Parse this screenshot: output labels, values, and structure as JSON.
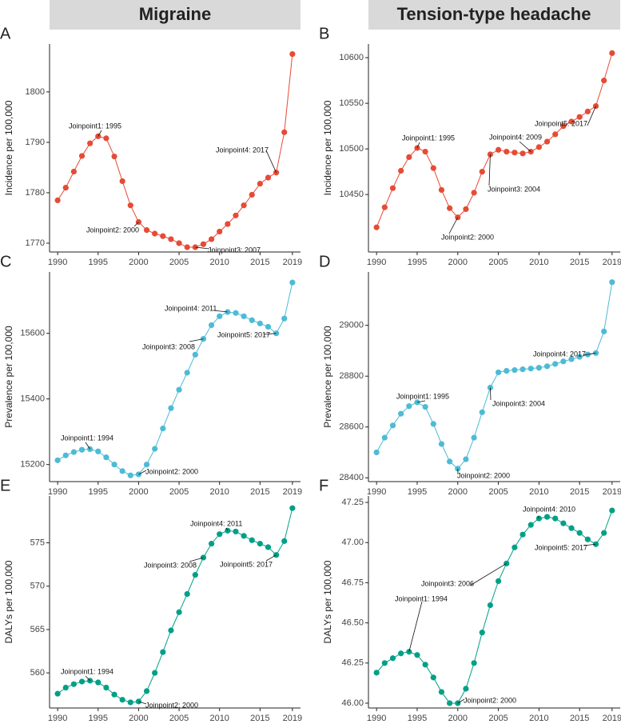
{
  "headers": [
    "Migraine",
    "Tension-type headache"
  ],
  "chart_data": [
    {
      "type": "line",
      "label": "A",
      "y_label": "Incidence per 100,000",
      "color": "#e64b35",
      "x": [
        1990,
        1991,
        1992,
        1993,
        1994,
        1995,
        1996,
        1997,
        1998,
        1999,
        2000,
        2001,
        2002,
        2003,
        2004,
        2005,
        2006,
        2007,
        2008,
        2009,
        2010,
        2011,
        2012,
        2013,
        2014,
        2015,
        2016,
        2017,
        2018,
        2019
      ],
      "values": [
        1778.5,
        1781,
        1784.2,
        1787.3,
        1789.8,
        1791.2,
        1790.8,
        1787.2,
        1782.3,
        1777.5,
        1774.2,
        1772.6,
        1771.9,
        1771.4,
        1770.8,
        1770,
        1769.2,
        1769.2,
        1769.8,
        1770.8,
        1772.3,
        1773.8,
        1775.5,
        1777.5,
        1779.6,
        1781.8,
        1783,
        1784,
        1792,
        1807.5
      ],
      "xlim": [
        1989,
        2020
      ],
      "xticks": [
        1990,
        1995,
        2000,
        2005,
        2010,
        2015,
        2019
      ],
      "ylim": [
        1768.25,
        1809.5
      ],
      "yticks": [
        1770,
        1780,
        1790,
        1800
      ],
      "annotations": [
        "Joinpoint1: 1995",
        "Joinpoint2: 2000",
        "Joinpoint3: 2007",
        "Joinpoint4: 2017"
      ]
    },
    {
      "type": "line",
      "label": "B",
      "y_label": "Incidence per 100,000",
      "color": "#e64b35",
      "x": [
        1990,
        1991,
        1992,
        1993,
        1994,
        1995,
        1996,
        1997,
        1998,
        1999,
        2000,
        2001,
        2002,
        2003,
        2004,
        2005,
        2006,
        2007,
        2008,
        2009,
        2010,
        2011,
        2012,
        2013,
        2014,
        2015,
        2016,
        2017,
        2018,
        2019
      ],
      "values": [
        10414,
        10436,
        10457,
        10476,
        10491,
        10501,
        10497,
        10479,
        10455,
        10435,
        10425,
        10434,
        10452,
        10475,
        10494,
        10499,
        10497,
        10496,
        10495,
        10497,
        10502,
        10508,
        10516,
        10525,
        10530,
        10535,
        10541,
        10547,
        10575,
        10605
      ],
      "xlim": [
        1989,
        2020
      ],
      "xticks": [
        1990,
        1995,
        2000,
        2005,
        2010,
        2015,
        2019
      ],
      "ylim": [
        10387,
        10615
      ],
      "yticks": [
        10450,
        10500,
        10550,
        10600
      ],
      "annotations": [
        "Joinpoint1: 1995",
        "Joinpoint2: 2000",
        "Joinpoint3: 2004",
        "Joinpoint4: 2009",
        "Joinpoint5: 2017"
      ]
    },
    {
      "type": "line",
      "label": "C",
      "y_label": "Prevalence per 100,000",
      "color": "#4dbbd5",
      "x": [
        1990,
        1991,
        1992,
        1993,
        1994,
        1995,
        1996,
        1997,
        1998,
        1999,
        2000,
        2001,
        2002,
        2003,
        2004,
        2005,
        2006,
        2007,
        2008,
        2009,
        2010,
        2011,
        2012,
        2013,
        2014,
        2015,
        2016,
        2017,
        2018,
        2019
      ],
      "values": [
        15213,
        15228,
        15238,
        15245,
        15247,
        15240,
        15222,
        15200,
        15180,
        15167,
        15170,
        15200,
        15248,
        15310,
        15372,
        15428,
        15480,
        15535,
        15583,
        15625,
        15652,
        15665,
        15662,
        15652,
        15640,
        15630,
        15620,
        15600,
        15645,
        15755
      ],
      "xlim": [
        1989,
        2020
      ],
      "xticks": [
        1990,
        1995,
        2000,
        2005,
        2010,
        2015,
        2019
      ],
      "ylim": [
        15148,
        15787
      ],
      "yticks": [
        15200,
        15400,
        15600
      ],
      "annotations": [
        "Joinpoint1: 1994",
        "Joinpoint2: 2000",
        "Joinpoint3: 2008",
        "Joinpoint4: 2011",
        "Joinpoint5: 2017"
      ]
    },
    {
      "type": "line",
      "label": "D",
      "y_label": "Prevalence per 100,000",
      "color": "#4dbbd5",
      "x": [
        1990,
        1991,
        1992,
        1993,
        1994,
        1995,
        1996,
        1997,
        1998,
        1999,
        2000,
        2001,
        2002,
        2003,
        2004,
        2005,
        2006,
        2007,
        2008,
        2009,
        2010,
        2011,
        2012,
        2013,
        2014,
        2015,
        2016,
        2017,
        2018,
        2019
      ],
      "values": [
        28500,
        28558,
        28606,
        28652,
        28682,
        28697,
        28679,
        28612,
        28533,
        28464,
        28436,
        28473,
        28558,
        28658,
        28755,
        28815,
        28821,
        28824,
        28827,
        28830,
        28833,
        28839,
        28848,
        28858,
        28867,
        28876,
        28885,
        28891,
        28976,
        29170
      ],
      "xlim": [
        1989,
        2020
      ],
      "xticks": [
        1990,
        1995,
        2000,
        2005,
        2010,
        2015,
        2019
      ],
      "ylim": [
        28385,
        29210
      ],
      "yticks": [
        28400,
        28600,
        28800,
        29000
      ],
      "annotations": [
        "Joinpoint1: 1995",
        "Joinpoint2: 2000",
        "Joinpoint3: 2004",
        "Joinpoint4: 2017"
      ]
    },
    {
      "type": "line",
      "label": "E",
      "y_label": "DALYs per 100,000",
      "color": "#00a087",
      "x": [
        1990,
        1991,
        1992,
        1993,
        1994,
        1995,
        1996,
        1997,
        1998,
        1999,
        2000,
        2001,
        2002,
        2003,
        2004,
        2005,
        2006,
        2007,
        2008,
        2009,
        2010,
        2011,
        2012,
        2013,
        2014,
        2015,
        2016,
        2017,
        2018,
        2019
      ],
      "values": [
        557.6,
        558.3,
        558.7,
        559.0,
        559.1,
        558.9,
        558.3,
        557.5,
        556.9,
        556.6,
        556.7,
        557.9,
        560.0,
        562.4,
        564.9,
        567.0,
        569.1,
        571.3,
        573.3,
        574.9,
        576.0,
        576.4,
        576.3,
        575.8,
        575.3,
        574.9,
        574.5,
        573.6,
        575.2,
        579.0
      ],
      "xlim": [
        1989,
        2020
      ],
      "xticks": [
        1990,
        1995,
        2000,
        2005,
        2010,
        2015,
        2019
      ],
      "ylim": [
        555.95,
        580.4
      ],
      "yticks": [
        560,
        565,
        570,
        575
      ],
      "annotations": [
        "Joinpoint1: 1994",
        "Joinpoint2: 2000",
        "Joinpoint3: 2008",
        "Joinpoint4: 2011",
        "Joinpoint5: 2017"
      ]
    },
    {
      "type": "line",
      "label": "F",
      "y_label": "DALYs per 100,000",
      "color": "#00a087",
      "x": [
        1990,
        1991,
        1992,
        1993,
        1994,
        1995,
        1996,
        1997,
        1998,
        1999,
        2000,
        2001,
        2002,
        2003,
        2004,
        2005,
        2006,
        2007,
        2008,
        2009,
        2010,
        2011,
        2012,
        2013,
        2014,
        2015,
        2016,
        2017,
        2018,
        2019
      ],
      "values": [
        46.19,
        46.25,
        46.28,
        46.31,
        46.32,
        46.3,
        46.24,
        46.16,
        46.07,
        46.0,
        46.0,
        46.09,
        46.25,
        46.44,
        46.61,
        46.76,
        46.87,
        46.97,
        47.05,
        47.11,
        47.15,
        47.16,
        47.15,
        47.12,
        47.09,
        47.06,
        47.02,
        46.99,
        47.06,
        47.2
      ],
      "xlim": [
        1989,
        2020
      ],
      "xticks": [
        1990,
        1995,
        2000,
        2005,
        2010,
        2015,
        2019
      ],
      "ylim": [
        45.97,
        47.29
      ],
      "yticks": [
        {
          "value": 46,
          "label": "46.00"
        },
        46.25,
        {
          "value": 46.5,
          "label": "46.50"
        },
        46.75,
        {
          "value": 47,
          "label": "47.00"
        },
        47.25
      ],
      "annotations": [
        "Joinpoint1: 1994",
        "Joinpoint2: 2000",
        "Joinpoint3: 2006",
        "Joinpoint4: 2010",
        "Joinpoint5: 2017"
      ]
    }
  ]
}
